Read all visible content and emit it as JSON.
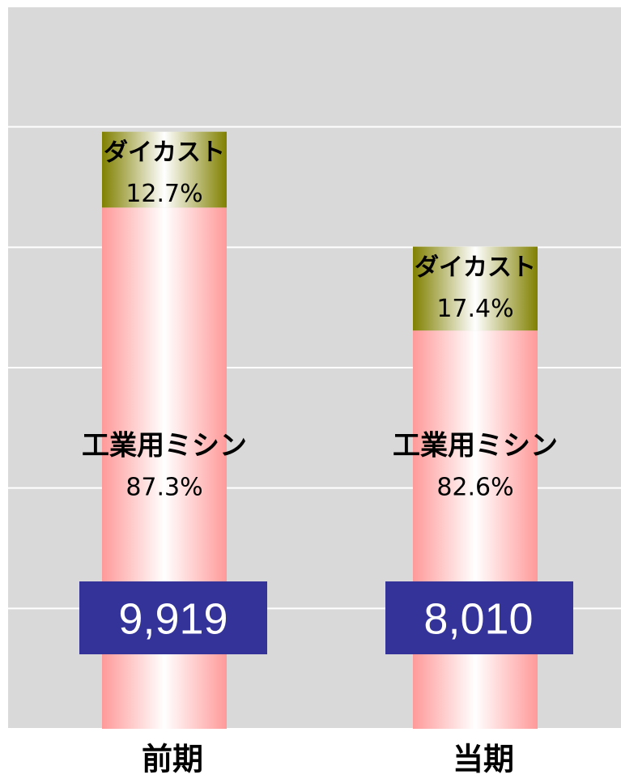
{
  "chart_data": {
    "type": "bar",
    "stacked": true,
    "categories": [
      "前期",
      "当期"
    ],
    "series": [
      {
        "name": "工業用ミシン",
        "color": "#ff9999",
        "values": [
          87.3,
          82.6
        ],
        "value_labels": [
          "87.3%",
          "82.6%"
        ]
      },
      {
        "name": "ダイカスト",
        "color": "#808000",
        "values": [
          12.7,
          17.4
        ],
        "value_labels": [
          "12.7%",
          "17.4%"
        ]
      }
    ],
    "totals": {
      "values": [
        9919,
        8010
      ],
      "labels": [
        "9,919",
        "8,010"
      ],
      "color": "#333399"
    },
    "ylim": [
      0,
      12000
    ],
    "yticks": [
      0,
      2000,
      4000,
      6000,
      8000,
      10000,
      12000
    ],
    "grid": true
  }
}
